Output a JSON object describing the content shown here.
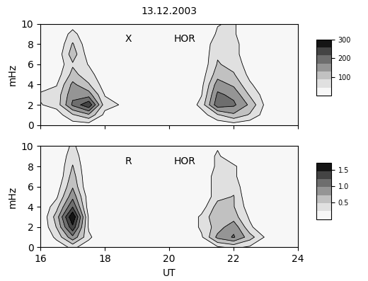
{
  "chart_data": [
    {
      "type": "contour",
      "title": "13.12.2003",
      "annotations": [
        "X",
        "HOR"
      ],
      "y_label": "mHz",
      "x": [
        16,
        16.5,
        17,
        17.5,
        18,
        18.5,
        19,
        19.5,
        20,
        20.5,
        21,
        21.5,
        22,
        22.5,
        23,
        23.5,
        24
      ],
      "y": [
        0,
        1,
        2,
        3,
        4,
        5,
        6,
        7,
        8,
        9,
        10
      ],
      "cells": [
        [
          0,
          0,
          20,
          20,
          0,
          0,
          0,
          0,
          0,
          0,
          0,
          10,
          20,
          10,
          0,
          0,
          0
        ],
        [
          10,
          20,
          80,
          120,
          30,
          10,
          0,
          0,
          0,
          0,
          20,
          80,
          120,
          80,
          20,
          0,
          0
        ],
        [
          40,
          60,
          180,
          250,
          60,
          40,
          0,
          0,
          0,
          0,
          60,
          200,
          180,
          120,
          30,
          10,
          0
        ],
        [
          50,
          60,
          160,
          150,
          40,
          40,
          0,
          0,
          0,
          0,
          40,
          180,
          160,
          80,
          20,
          0,
          0
        ],
        [
          20,
          40,
          140,
          90,
          20,
          20,
          0,
          0,
          0,
          0,
          30,
          150,
          120,
          50,
          10,
          0,
          0
        ],
        [
          0,
          20,
          100,
          60,
          10,
          0,
          0,
          0,
          0,
          0,
          20,
          110,
          90,
          30,
          0,
          0,
          0
        ],
        [
          0,
          10,
          80,
          40,
          0,
          0,
          0,
          0,
          0,
          0,
          10,
          90,
          70,
          20,
          0,
          0,
          0
        ],
        [
          0,
          10,
          110,
          20,
          0,
          0,
          0,
          0,
          0,
          0,
          10,
          80,
          60,
          10,
          0,
          0,
          0
        ],
        [
          0,
          0,
          90,
          10,
          0,
          0,
          0,
          0,
          0,
          0,
          10,
          70,
          60,
          10,
          0,
          0,
          0
        ],
        [
          0,
          0,
          60,
          0,
          0,
          0,
          0,
          0,
          0,
          0,
          0,
          50,
          50,
          0,
          0,
          0,
          0
        ],
        [
          0,
          0,
          20,
          0,
          0,
          0,
          0,
          0,
          0,
          0,
          0,
          40,
          50,
          0,
          0,
          0,
          0
        ]
      ],
      "colorbar": {
        "range": [
          0,
          300
        ],
        "ticks": [
          100,
          200,
          300
        ]
      },
      "xlim": [
        16,
        24
      ],
      "xticks": [
        16,
        18,
        20,
        22,
        24
      ],
      "ylim": [
        0,
        10
      ],
      "yticks": [
        0,
        2,
        4,
        6,
        8,
        10
      ],
      "tick_labels": "y"
    },
    {
      "type": "contour",
      "annotations": [
        "R",
        "HOR"
      ],
      "y_label": "mHz",
      "x_label": "UT",
      "x": [
        16,
        16.5,
        17,
        17.5,
        18,
        18.5,
        19,
        19.5,
        20,
        20.5,
        21,
        21.5,
        22,
        22.5,
        23,
        23.5,
        24
      ],
      "y": [
        0,
        1,
        2,
        3,
        4,
        5,
        6,
        7,
        8,
        9,
        10
      ],
      "cells": [
        [
          0,
          0.1,
          0.3,
          0.1,
          0,
          0,
          0,
          0,
          0,
          0,
          0,
          0.2,
          0.3,
          0.2,
          0,
          0,
          0
        ],
        [
          0,
          0.3,
          0.9,
          0.3,
          0,
          0,
          0,
          0,
          0,
          0,
          0.2,
          0.8,
          1.0,
          0.6,
          0.2,
          0,
          0
        ],
        [
          0,
          0.5,
          1.4,
          0.2,
          0,
          0,
          0,
          0,
          0,
          0,
          0.3,
          0.6,
          0.9,
          0.3,
          0,
          0,
          0
        ],
        [
          0,
          0.6,
          1.7,
          0.2,
          0,
          0,
          0,
          0,
          0,
          0,
          0.3,
          0.7,
          0.6,
          0.2,
          0,
          0,
          0
        ],
        [
          0,
          0.4,
          1.2,
          0.1,
          0,
          0,
          0,
          0,
          0,
          0,
          0.1,
          0.6,
          0.5,
          0.1,
          0,
          0,
          0
        ],
        [
          0,
          0.2,
          0.9,
          0.1,
          0,
          0,
          0,
          0,
          0,
          0,
          0,
          0.4,
          0.5,
          0,
          0,
          0,
          0
        ],
        [
          0,
          0.1,
          0.7,
          0,
          0,
          0,
          0,
          0,
          0,
          0,
          0,
          0.4,
          0.4,
          0,
          0,
          0,
          0
        ],
        [
          0,
          0,
          0.6,
          0,
          0,
          0,
          0,
          0,
          0,
          0,
          0,
          0.4,
          0.3,
          0,
          0,
          0,
          0
        ],
        [
          0,
          0,
          0.5,
          0,
          0,
          0,
          0,
          0,
          0,
          0,
          0,
          0.3,
          0.3,
          0,
          0,
          0,
          0
        ],
        [
          0,
          0,
          0.4,
          0,
          0,
          0,
          0,
          0,
          0,
          0,
          0,
          0.3,
          0,
          0,
          0,
          0,
          0
        ],
        [
          0,
          0,
          0.3,
          0,
          0,
          0,
          0,
          0,
          0,
          0,
          0,
          0.2,
          0,
          0,
          0,
          0,
          0
        ]
      ],
      "colorbar": {
        "range": [
          0,
          1.7
        ],
        "ticks": [
          0.5,
          {
            "value": 1.0,
            "label": "1.0"
          },
          1.5
        ]
      },
      "xlim": [
        16,
        24
      ],
      "xticks": [
        16,
        18,
        20,
        22,
        24
      ],
      "ylim": [
        0,
        10
      ],
      "yticks": [
        0,
        2,
        4,
        6,
        8,
        10
      ]
    }
  ]
}
